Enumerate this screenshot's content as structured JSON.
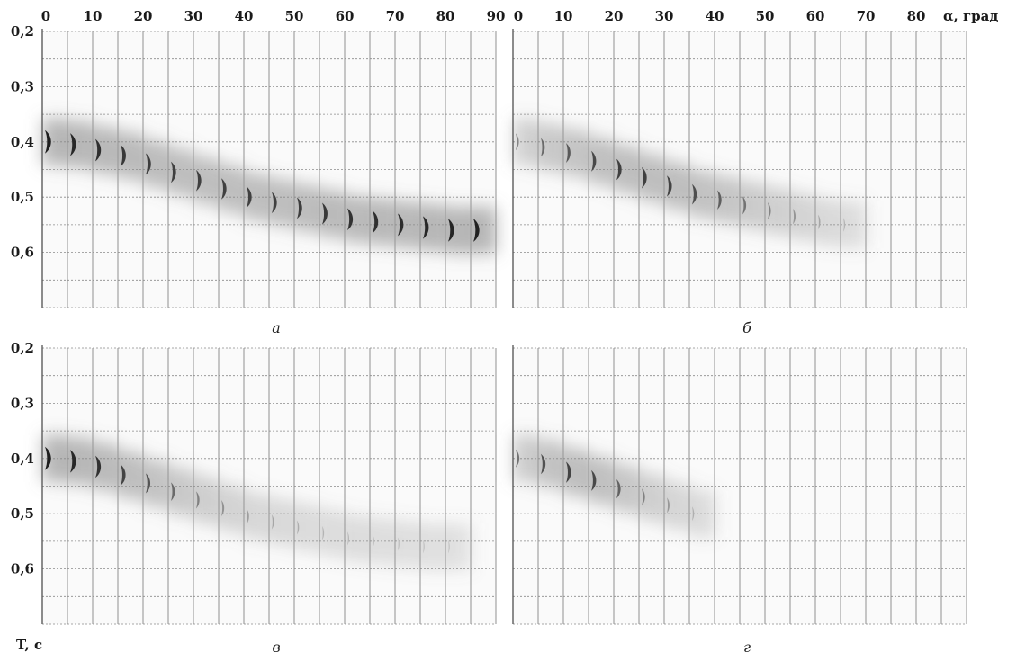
{
  "chart_data": {
    "type": "heatmap",
    "description_units": {
      "x": "α, град",
      "y": "T, с"
    },
    "x_axis": {
      "label": "α, град",
      "ticks_left": [
        "0",
        "10",
        "20",
        "30",
        "40",
        "50",
        "60",
        "70",
        "80",
        "90"
      ],
      "ticks_right": [
        "0",
        "10",
        "20",
        "30",
        "40",
        "50",
        "60",
        "70",
        "80"
      ],
      "range": [
        0,
        90
      ]
    },
    "y_axis": {
      "label": "T, с",
      "ticks": [
        "0,2",
        "0,3",
        "0,4",
        "0,5",
        "0,6"
      ],
      "tick_values": [
        0.2,
        0.3,
        0.4,
        0.5,
        0.6
      ],
      "range": [
        0.2,
        0.7
      ]
    },
    "angles": [
      0,
      5,
      10,
      15,
      20,
      25,
      30,
      35,
      40,
      45,
      50,
      55,
      60,
      65,
      70,
      75,
      80,
      85
    ],
    "panels": [
      {
        "label": "а",
        "period": [
          0.4,
          0.405,
          0.415,
          0.425,
          0.44,
          0.455,
          0.47,
          0.485,
          0.5,
          0.51,
          0.52,
          0.53,
          0.54,
          0.545,
          0.55,
          0.555,
          0.56,
          0.56
        ],
        "intensity": [
          1.0,
          0.95,
          0.9,
          0.85,
          0.82,
          0.8,
          0.8,
          0.8,
          0.8,
          0.8,
          0.82,
          0.85,
          0.88,
          0.9,
          0.92,
          0.94,
          0.96,
          0.98
        ]
      },
      {
        "label": "б",
        "period": [
          0.4,
          0.41,
          0.42,
          0.435,
          0.45,
          0.465,
          0.48,
          0.495,
          0.505,
          0.515,
          0.525,
          0.535,
          0.545,
          0.55
        ],
        "intensity": [
          0.4,
          0.55,
          0.65,
          0.75,
          0.8,
          0.8,
          0.78,
          0.72,
          0.62,
          0.5,
          0.4,
          0.3,
          0.2,
          0.12
        ]
      },
      {
        "label": "в",
        "period": [
          0.4,
          0.405,
          0.415,
          0.43,
          0.445,
          0.46,
          0.475,
          0.49,
          0.505,
          0.515,
          0.525,
          0.535,
          0.545,
          0.55,
          0.555,
          0.56,
          0.56
        ],
        "intensity": [
          1.0,
          0.95,
          0.88,
          0.78,
          0.68,
          0.55,
          0.42,
          0.32,
          0.25,
          0.2,
          0.16,
          0.12,
          0.1,
          0.08,
          0.07,
          0.06,
          0.05
        ]
      },
      {
        "label": "г",
        "period": [
          0.4,
          0.41,
          0.425,
          0.44,
          0.455,
          0.47,
          0.485,
          0.5
        ],
        "intensity": [
          0.5,
          0.7,
          0.78,
          0.75,
          0.6,
          0.42,
          0.28,
          0.15
        ]
      }
    ],
    "grid": true
  }
}
